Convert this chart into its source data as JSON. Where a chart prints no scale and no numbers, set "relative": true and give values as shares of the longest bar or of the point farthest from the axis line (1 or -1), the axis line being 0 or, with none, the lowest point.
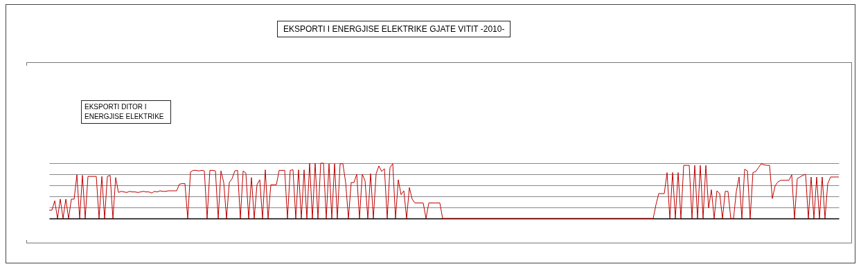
{
  "chart_data": {
    "type": "line",
    "title": "EKSPORTI  I  ENERGJISE  ELEKTRIKE  GJATE  VITIT -2010-",
    "annotations": [
      "EKSPORTI  DITOR  I ENERGJISE  ELEKTRIKE"
    ],
    "relative": true,
    "grid": "y",
    "categories": [
      null,
      null,
      null,
      null,
      null,
      null,
      null,
      null,
      null,
      null,
      null,
      null,
      null,
      null,
      null,
      null,
      null,
      null,
      null,
      null,
      null,
      null,
      null,
      null,
      null,
      null,
      null,
      null,
      null,
      null,
      null,
      null,
      null,
      null,
      null,
      null,
      null,
      null,
      null,
      null,
      null,
      null,
      null,
      null,
      null,
      null,
      null,
      null,
      null,
      null,
      null,
      null,
      null,
      null,
      null,
      null,
      null,
      null,
      null,
      null,
      null,
      null,
      null,
      null,
      null,
      null,
      null,
      null,
      null,
      null,
      null,
      null,
      null,
      null,
      null,
      null,
      null,
      null,
      null,
      null,
      null,
      null,
      null,
      null,
      null,
      null,
      null,
      null,
      null,
      null,
      null,
      null,
      null,
      null,
      null,
      null,
      null,
      null,
      null,
      null,
      null,
      null,
      null,
      null,
      null,
      null,
      null,
      null,
      null,
      null,
      null,
      null,
      null,
      null,
      null,
      null,
      null,
      null,
      null,
      null,
      null,
      null,
      null,
      null,
      null,
      null,
      null,
      null,
      null,
      null,
      null,
      null,
      null,
      null,
      null,
      null,
      null,
      null,
      null,
      null,
      null,
      null,
      null,
      null,
      null,
      null,
      null,
      null,
      null,
      null,
      null,
      null,
      null,
      null,
      null,
      null,
      null,
      null,
      null,
      null,
      null,
      null,
      null,
      null,
      null,
      null,
      null,
      null,
      null,
      null,
      null,
      null,
      null,
      null,
      null,
      null,
      null,
      null,
      null,
      null,
      null,
      null,
      null,
      null,
      null,
      null,
      null,
      null,
      null,
      null,
      null,
      null,
      null,
      null,
      null,
      null,
      null,
      null,
      null,
      null,
      null,
      null,
      null,
      null,
      null,
      null,
      null,
      null,
      null,
      null,
      null,
      null,
      null,
      null,
      null,
      null,
      null,
      null,
      null,
      null,
      null,
      null,
      null,
      null,
      null,
      null,
      null,
      null,
      null,
      null,
      null,
      null,
      null,
      null,
      null,
      null,
      null,
      null,
      null,
      null,
      null,
      null,
      null,
      null,
      null,
      null,
      null,
      null,
      null,
      null,
      null,
      null,
      null,
      null,
      null,
      null,
      null,
      null,
      null,
      null,
      null,
      null,
      null,
      null,
      null,
      null,
      null,
      null,
      null,
      null,
      null,
      null,
      null,
      null,
      null,
      null,
      null,
      null,
      null,
      null,
      null,
      null,
      null,
      null,
      null,
      null
    ],
    "series": [
      {
        "color": "#c00000",
        "values": [
          0.15,
          0.15,
          0.32,
          0,
          0.35,
          0,
          0.35,
          0,
          0.35,
          0.35,
          0.79,
          0,
          0.78,
          0,
          0.76,
          0.76,
          0.76,
          0.76,
          0,
          0.76,
          0,
          0.76,
          0.78,
          0,
          0.74,
          0.47,
          0.49,
          0.48,
          0.47,
          0.49,
          0.48,
          0.48,
          0.47,
          0.48,
          0.49,
          0.48,
          0.48,
          0.46,
          0.49,
          0.48,
          0.5,
          0.49,
          0.49,
          0.5,
          0.5,
          0.5,
          0.5,
          0.62,
          0.63,
          0.63,
          0,
          0.84,
          0.87,
          0.87,
          0.86,
          0.87,
          0.86,
          0,
          0.87,
          0.87,
          0.86,
          0,
          0.86,
          0.65,
          0,
          0.65,
          0.72,
          0.86,
          0.87,
          0,
          0.86,
          0.82,
          0,
          0.74,
          0,
          0.61,
          0.7,
          0,
          0.88,
          0,
          0.61,
          0.61,
          0.61,
          0.87,
          0.87,
          0.87,
          0,
          0.87,
          0.88,
          0,
          0.88,
          0,
          0.88,
          0,
          1,
          0,
          1,
          0,
          1,
          1,
          0,
          0.99,
          0,
          0.99,
          0,
          0.99,
          0.99,
          0.65,
          0,
          0.65,
          0.65,
          0.8,
          0,
          0.8,
          0.68,
          0,
          0.81,
          0,
          0.81,
          0.95,
          0.85,
          0.9,
          0,
          0.92,
          0.99,
          0,
          0.7,
          0.43,
          0.5,
          0,
          0.56,
          0.35,
          0.28,
          0.28,
          0.28,
          0.28,
          0,
          0.28,
          0.28,
          0.28,
          0.28,
          0.28,
          0,
          0,
          0,
          0,
          0,
          0,
          0,
          0,
          0,
          0,
          0,
          0,
          0,
          0,
          0,
          0,
          0,
          0,
          0,
          0,
          0,
          0,
          0,
          0,
          0,
          0,
          0,
          0,
          0,
          0,
          0,
          0,
          0,
          0,
          0,
          0,
          0,
          0,
          0,
          0,
          0,
          0,
          0,
          0,
          0,
          0,
          0,
          0,
          0,
          0,
          0,
          0,
          0,
          0,
          0,
          0,
          0,
          0,
          0,
          0,
          0,
          0,
          0,
          0,
          0,
          0,
          0,
          0,
          0,
          0,
          0,
          0,
          0,
          0,
          0,
          0,
          0,
          0.25,
          0.45,
          0.45,
          0.45,
          0.83,
          0,
          0.83,
          0,
          0.83,
          0,
          0.96,
          0.96,
          0.96,
          0,
          0.96,
          0,
          0.96,
          0,
          0.96,
          0.19,
          0.52,
          0,
          0.5,
          0.45,
          0,
          0.49,
          0.49,
          0,
          0,
          0.49,
          0.75,
          0,
          0.89,
          0.86,
          0,
          0.83,
          0.85,
          0.92,
          0.99,
          0.97,
          0.96,
          0.96,
          0.36,
          0.59,
          0.66,
          0.69,
          0.69,
          0.69,
          0.69,
          0.79,
          0,
          0.72,
          0.75,
          0.78,
          0.8,
          0,
          0.75,
          0,
          0.75,
          0,
          0.75,
          0,
          0.63,
          0.75,
          0.75,
          0.75,
          0.75
        ]
      }
    ]
  }
}
